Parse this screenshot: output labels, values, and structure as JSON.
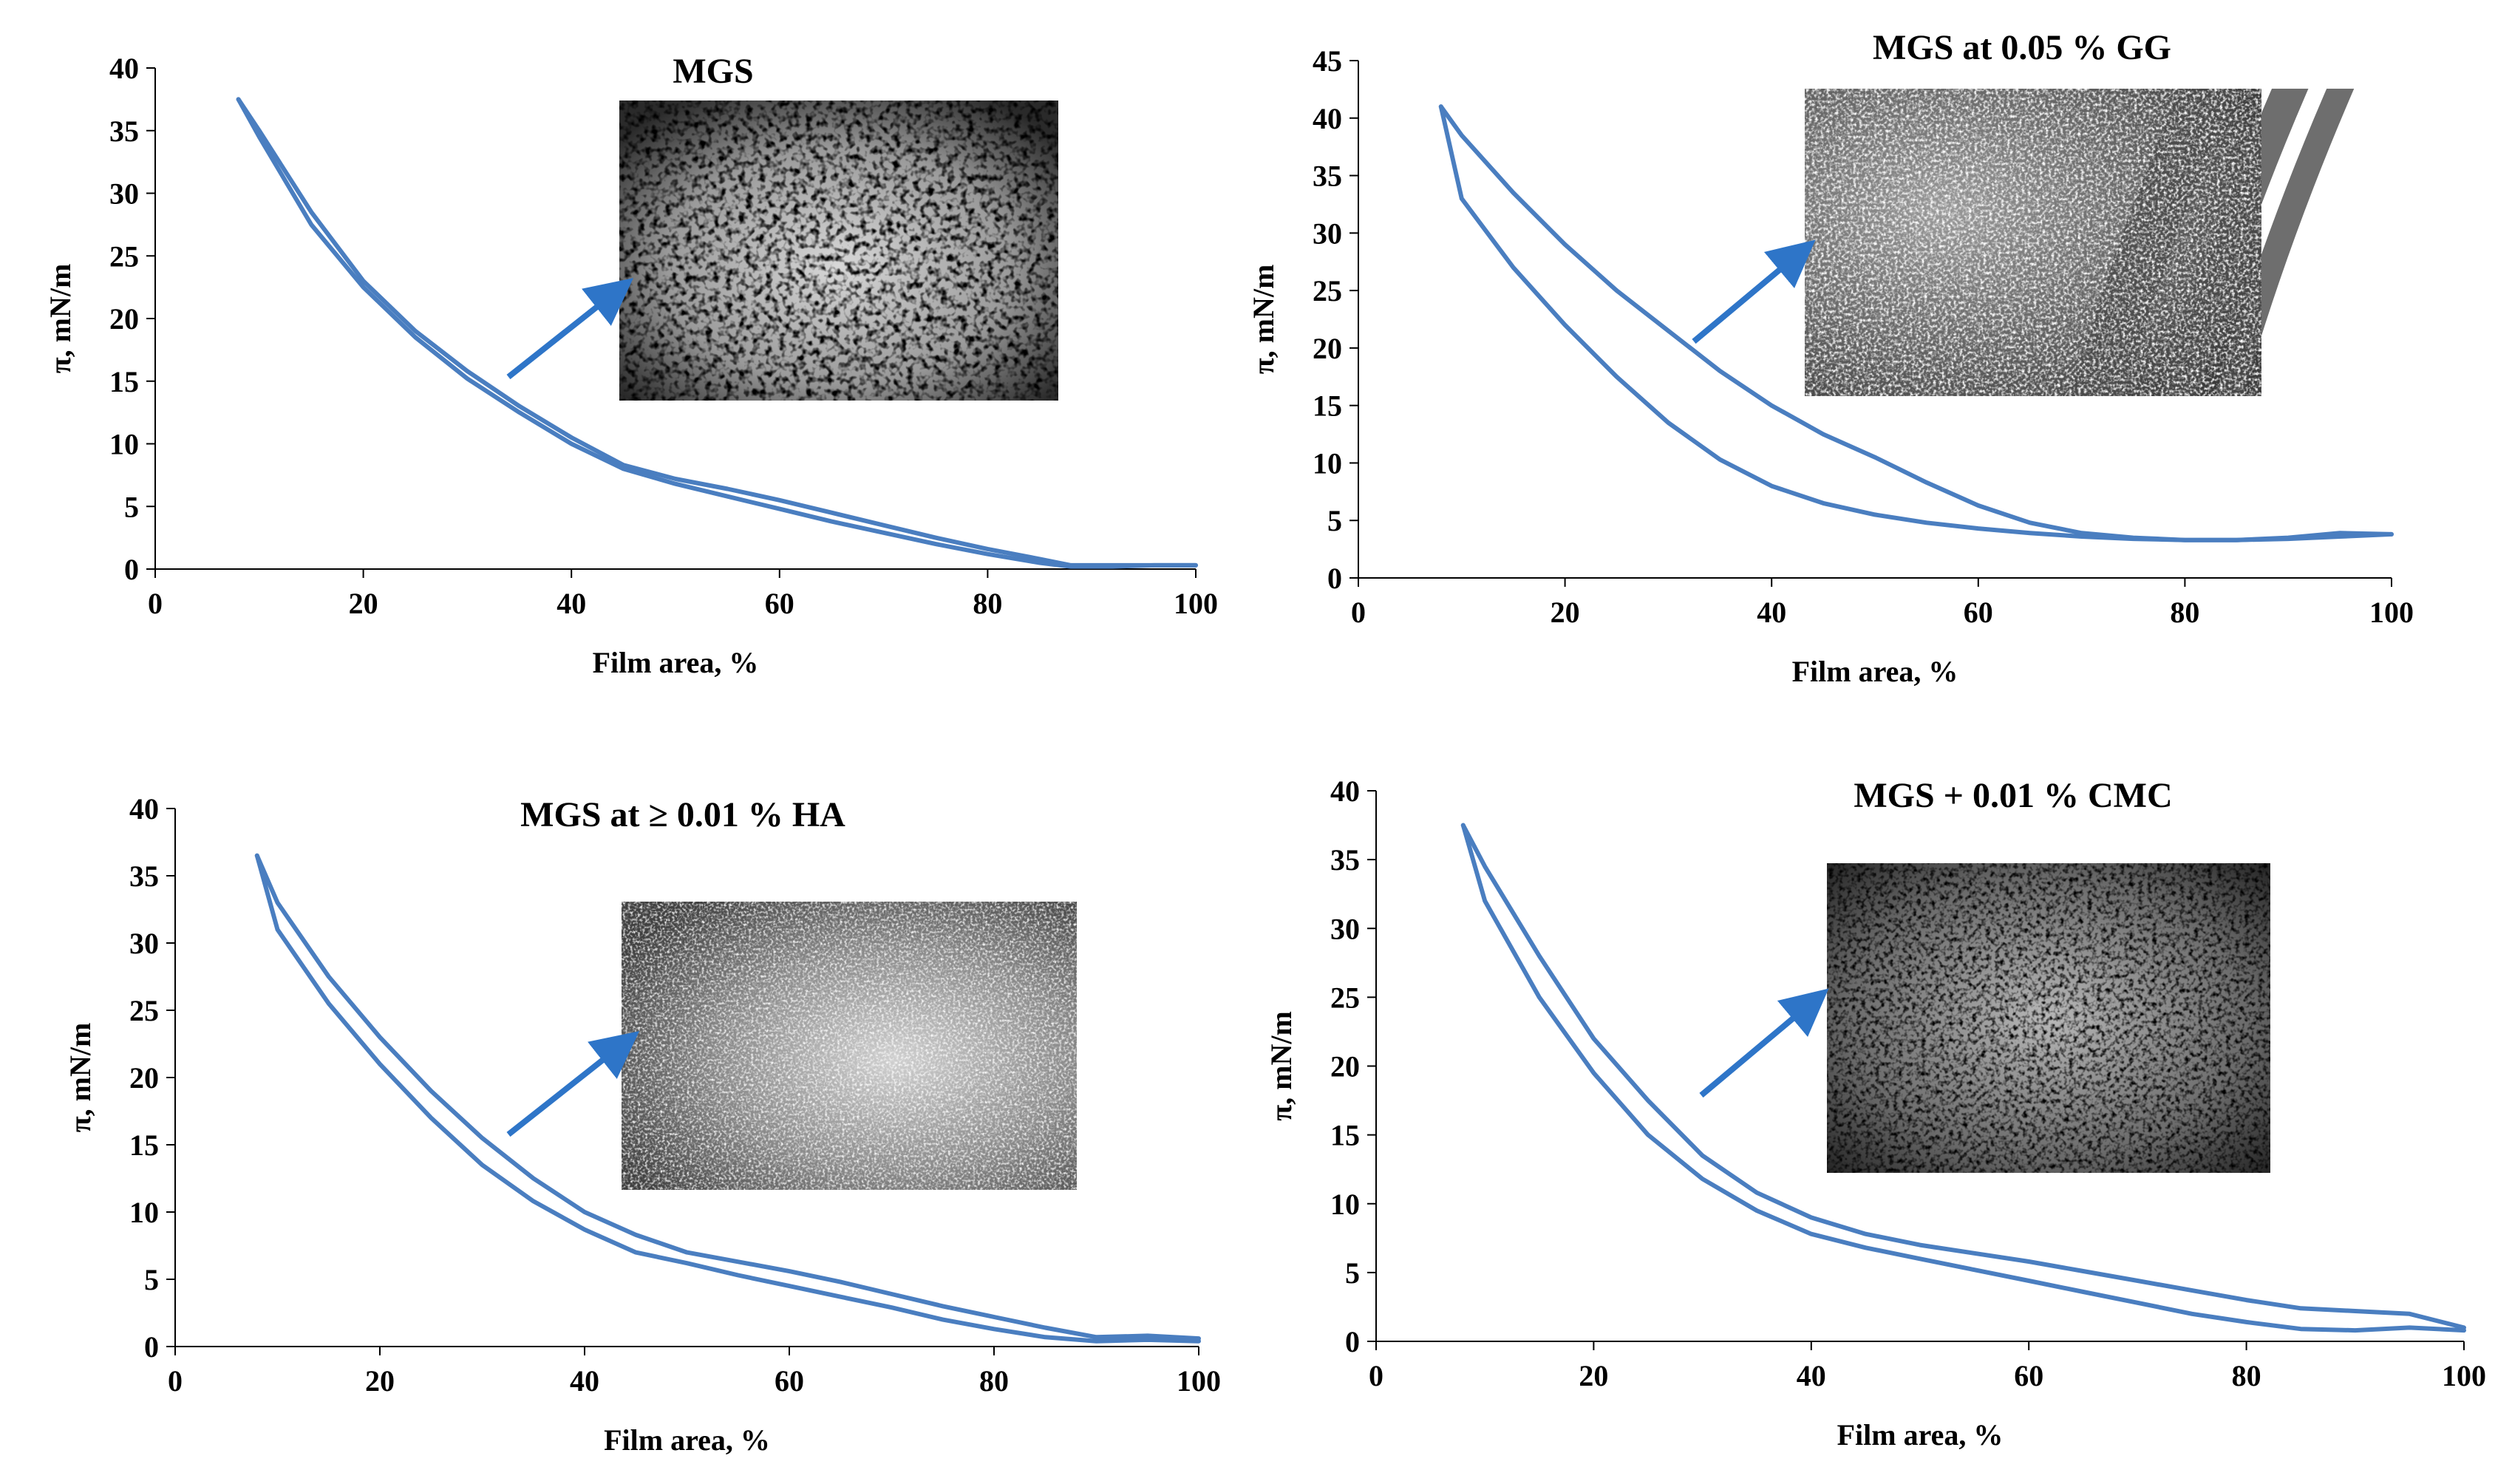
{
  "chart_data": [
    {
      "type": "line",
      "title": "MGS",
      "xlabel": "Film area, %",
      "ylabel": "π, mN/m",
      "xlim": [
        0,
        100
      ],
      "ylim": [
        0,
        40
      ],
      "xticks": [
        0,
        20,
        40,
        60,
        80,
        100
      ],
      "yticks": [
        0,
        5,
        10,
        15,
        20,
        25,
        30,
        35,
        40
      ],
      "grid": false,
      "line_color": "#4a7ec0",
      "series": [
        {
          "x": [
            8,
            10,
            15,
            20,
            25,
            30,
            35,
            40,
            45,
            50,
            55,
            60,
            65,
            70,
            75,
            80,
            85,
            88,
            92,
            96,
            100
          ],
          "y": [
            37.5,
            34.5,
            27.5,
            22.5,
            18.5,
            15.2,
            12.5,
            10,
            8,
            6.8,
            5.8,
            4.8,
            3.8,
            2.9,
            2,
            1.2,
            0.5,
            0.2,
            0.2,
            0.3,
            0.3
          ]
        },
        {
          "x": [
            8,
            10,
            15,
            20,
            25,
            30,
            35,
            40,
            45,
            50,
            55,
            60,
            65,
            70,
            75,
            80,
            85,
            88,
            92,
            96,
            100
          ],
          "y": [
            37.5,
            35,
            28.5,
            23,
            19,
            15.8,
            13,
            10.5,
            8.3,
            7.2,
            6.4,
            5.5,
            4.5,
            3.5,
            2.5,
            1.6,
            0.8,
            0.3,
            0.3,
            0.3,
            0.3
          ]
        }
      ],
      "inset": {
        "texture": "dark-porous"
      }
    },
    {
      "type": "line",
      "title": "MGS at 0.05 % GG",
      "xlabel": "Film area, %",
      "ylabel": "π, mN/m",
      "xlim": [
        0,
        100
      ],
      "ylim": [
        0,
        45
      ],
      "xticks": [
        0,
        20,
        40,
        60,
        80,
        100
      ],
      "yticks": [
        0,
        5,
        10,
        15,
        20,
        25,
        30,
        35,
        40,
        45
      ],
      "grid": false,
      "line_color": "#4a7ec0",
      "series": [
        {
          "x": [
            8,
            10,
            15,
            20,
            25,
            30,
            35,
            40,
            45,
            50,
            55,
            60,
            65,
            70,
            75,
            80,
            85,
            90,
            95,
            100
          ],
          "y": [
            41,
            33,
            27,
            22,
            17.5,
            13.5,
            10.3,
            8,
            6.5,
            5.5,
            4.8,
            4.3,
            3.9,
            3.6,
            3.4,
            3.3,
            3.3,
            3.4,
            3.6,
            3.8
          ]
        },
        {
          "x": [
            8,
            10,
            15,
            20,
            25,
            30,
            35,
            40,
            45,
            50,
            55,
            60,
            65,
            70,
            75,
            80,
            85,
            90,
            95,
            100
          ],
          "y": [
            41,
            38.5,
            33.5,
            29,
            25,
            21.5,
            18,
            15,
            12.5,
            10.5,
            8.3,
            6.3,
            4.8,
            3.9,
            3.5,
            3.3,
            3.3,
            3.5,
            3.9,
            3.8
          ]
        }
      ],
      "inset": {
        "texture": "grey-bands"
      }
    },
    {
      "type": "line",
      "title": "MGS at ≥ 0.01 % HA",
      "xlabel": "Film area, %",
      "ylabel": "π, mN/m",
      "xlim": [
        0,
        100
      ],
      "ylim": [
        0,
        40
      ],
      "xticks": [
        0,
        20,
        40,
        60,
        80,
        100
      ],
      "yticks": [
        0,
        5,
        10,
        15,
        20,
        25,
        30,
        35,
        40
      ],
      "grid": false,
      "line_color": "#4a7ec0",
      "series": [
        {
          "x": [
            8,
            10,
            15,
            20,
            25,
            30,
            35,
            40,
            45,
            50,
            55,
            60,
            65,
            70,
            75,
            80,
            85,
            90,
            95,
            100
          ],
          "y": [
            36.5,
            31,
            25.5,
            21,
            17,
            13.5,
            10.8,
            8.7,
            7,
            6.2,
            5.3,
            4.5,
            3.7,
            2.9,
            2,
            1.3,
            0.7,
            0.4,
            0.5,
            0.4
          ]
        },
        {
          "x": [
            8,
            10,
            15,
            20,
            25,
            30,
            35,
            40,
            45,
            50,
            55,
            60,
            65,
            70,
            75,
            80,
            85,
            90,
            95,
            100
          ],
          "y": [
            36.5,
            33,
            27.5,
            23,
            19,
            15.5,
            12.5,
            10,
            8.3,
            7,
            6.3,
            5.6,
            4.8,
            3.9,
            3,
            2.2,
            1.4,
            0.7,
            0.8,
            0.6
          ]
        }
      ],
      "inset": {
        "texture": "grey-granular"
      }
    },
    {
      "type": "line",
      "title": "MGS + 0.01 % CMC",
      "xlabel": "Film area, %",
      "ylabel": "π, mN/m",
      "xlim": [
        0,
        100
      ],
      "ylim": [
        0,
        40
      ],
      "xticks": [
        0,
        20,
        40,
        60,
        80,
        100
      ],
      "yticks": [
        0,
        5,
        10,
        15,
        20,
        25,
        30,
        35,
        40
      ],
      "grid": false,
      "line_color": "#4a7ec0",
      "series": [
        {
          "x": [
            8,
            10,
            15,
            20,
            25,
            30,
            35,
            40,
            45,
            50,
            55,
            60,
            65,
            70,
            75,
            80,
            85,
            90,
            95,
            100
          ],
          "y": [
            37.5,
            32,
            25,
            19.5,
            15,
            11.8,
            9.5,
            7.8,
            6.8,
            6,
            5.2,
            4.4,
            3.6,
            2.8,
            2,
            1.4,
            0.9,
            0.8,
            1,
            0.8
          ]
        },
        {
          "x": [
            8,
            10,
            15,
            20,
            25,
            30,
            35,
            40,
            45,
            50,
            55,
            60,
            65,
            70,
            75,
            80,
            85,
            90,
            95,
            100
          ],
          "y": [
            37.5,
            34.5,
            28,
            22,
            17.5,
            13.5,
            10.8,
            9,
            7.8,
            7,
            6.4,
            5.8,
            5.1,
            4.4,
            3.7,
            3,
            2.4,
            2.2,
            2,
            1
          ]
        }
      ],
      "inset": {
        "texture": "grey-porous"
      }
    }
  ]
}
